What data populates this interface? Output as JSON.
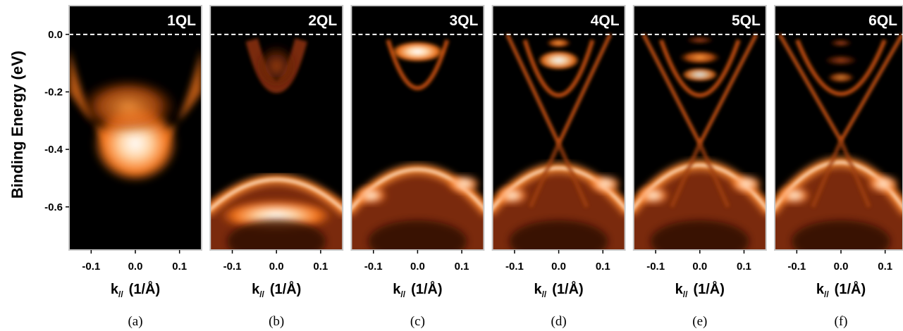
{
  "chart_data": {
    "type": "heatmap",
    "colormap": [
      "#000000",
      "#ff7a1a",
      "#ffffff"
    ],
    "y_axis": {
      "label": "Binding Energy (eV)",
      "ylim": [
        -0.75,
        0.1
      ],
      "ticks": [
        0.0,
        -0.2,
        -0.4,
        -0.6
      ],
      "tick_labels": [
        "0.0",
        "-0.2",
        "-0.4",
        "-0.6"
      ]
    },
    "x_axis": {
      "label_main": "k",
      "label_sub": "//",
      "label_unit": "(1/Å)",
      "xlim": [
        -0.15,
        0.15
      ],
      "ticks": [
        -0.1,
        0.0,
        0.1
      ],
      "tick_labels": [
        "-0.1",
        "0.0",
        "0.1"
      ]
    },
    "fermi_level": 0.0,
    "panels": [
      {
        "title": "1QL",
        "caption": "(a)"
      },
      {
        "title": "2QL",
        "caption": "(b)"
      },
      {
        "title": "3QL",
        "caption": "(c)"
      },
      {
        "title": "4QL",
        "caption": "(d)"
      },
      {
        "title": "5QL",
        "caption": "(e)"
      },
      {
        "title": "6QL",
        "caption": "(f)"
      }
    ]
  }
}
